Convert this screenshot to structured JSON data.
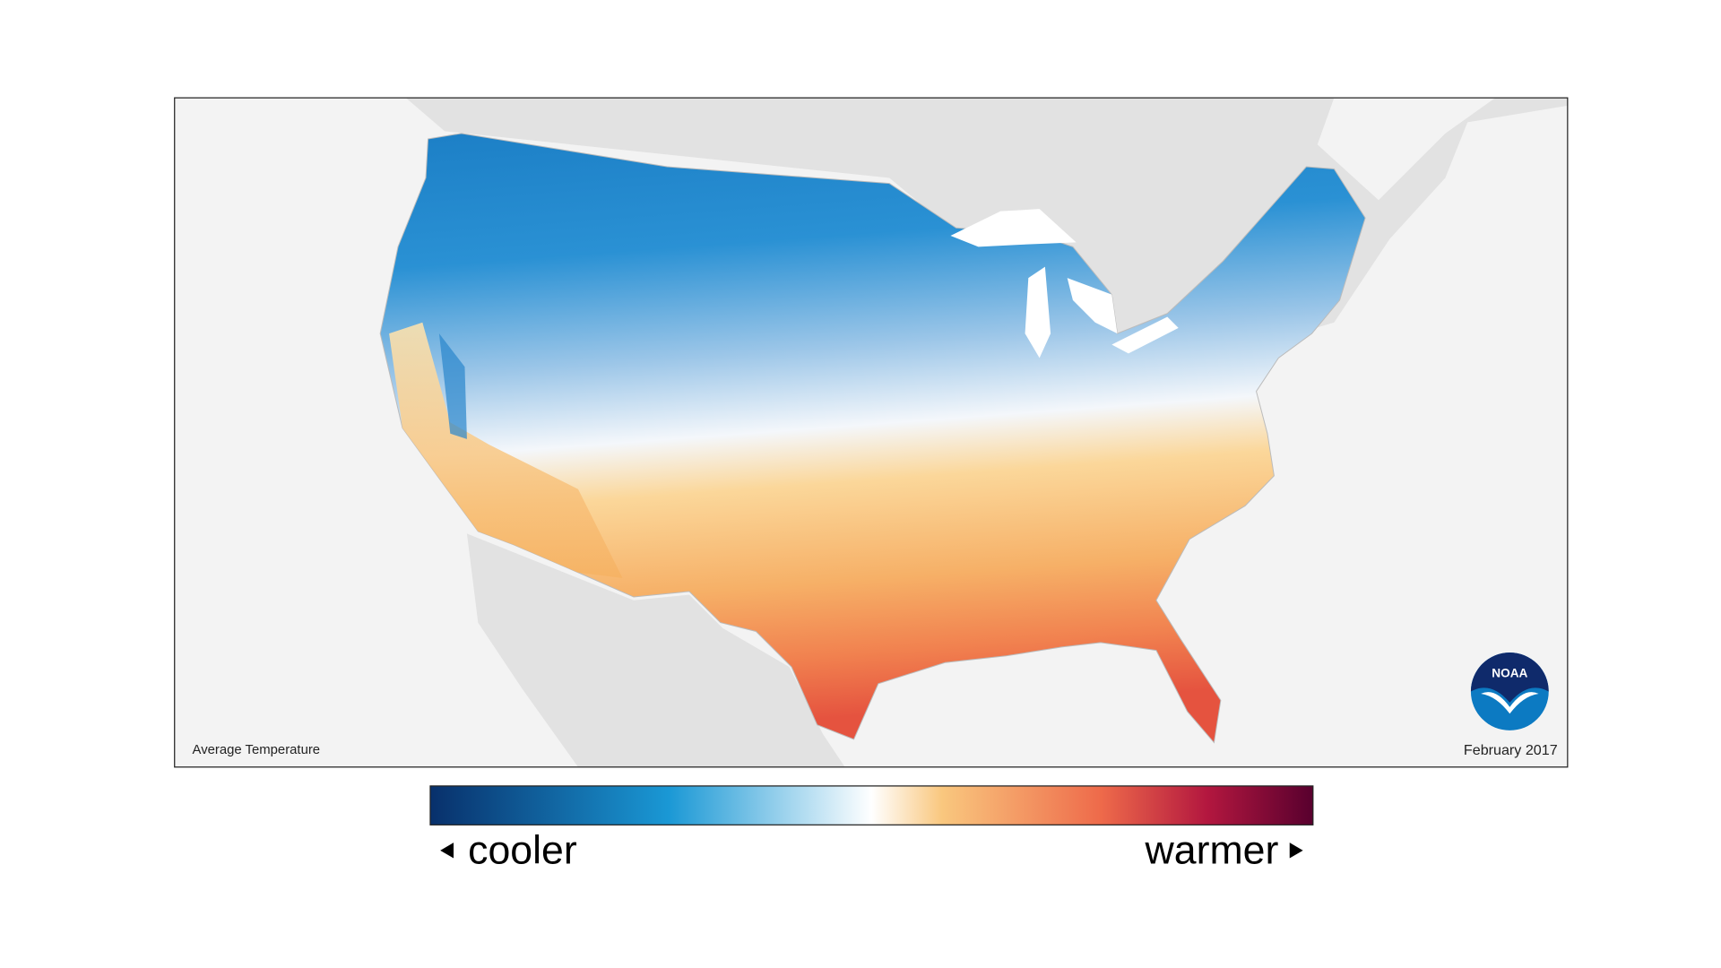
{
  "map": {
    "title": "Average Temperature",
    "date": "February 2017",
    "logo": "NOAA"
  },
  "legend": {
    "low_label": "cooler",
    "high_label": "warmer"
  }
}
